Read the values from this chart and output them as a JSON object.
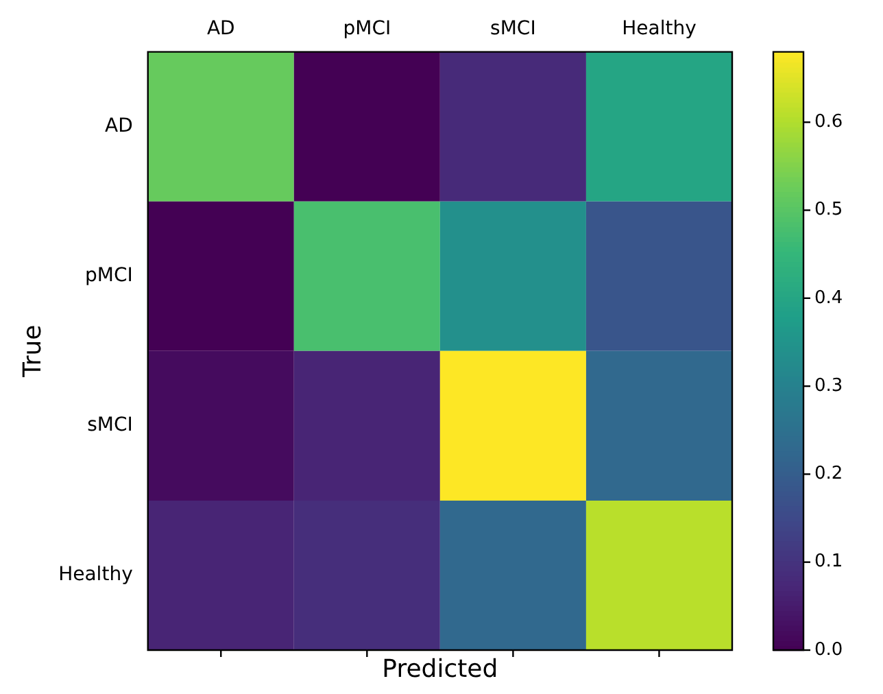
{
  "chart_data": {
    "type": "heatmap",
    "xlabel": "Predicted",
    "ylabel": "True",
    "categories": [
      "AD",
      "pMCI",
      "sMCI",
      "Healthy"
    ],
    "y_categories": [
      "AD",
      "pMCI",
      "sMCI",
      "Healthy"
    ],
    "cells": [
      [
        0.52,
        0.0,
        0.08,
        0.4
      ],
      [
        0.0,
        0.48,
        0.34,
        0.18
      ],
      [
        0.02,
        0.07,
        0.68,
        0.23
      ],
      [
        0.07,
        0.09,
        0.23,
        0.61
      ]
    ],
    "clim": [
      0,
      0.68
    ],
    "cticks": [
      {
        "value": 0,
        "label": "0.0"
      },
      {
        "value": 0.1,
        "label": "0.1"
      },
      {
        "value": 0.2,
        "label": "0.2"
      },
      {
        "value": 0.3,
        "label": "0.3"
      },
      {
        "value": 0.4,
        "label": "0.4"
      },
      {
        "value": 0.5,
        "label": "0.5"
      },
      {
        "value": 0.6,
        "label": "0.6"
      }
    ]
  }
}
